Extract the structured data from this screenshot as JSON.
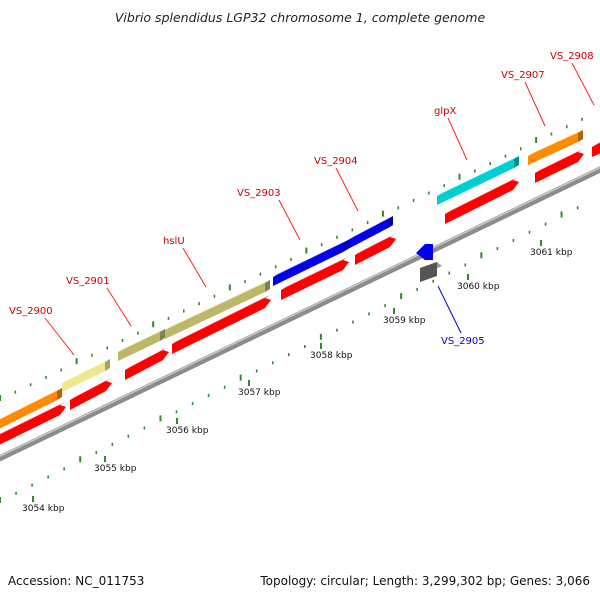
{
  "title": "Vibrio splendidus LGP32 chromosome 1, complete genome",
  "accession_text": "Accession: NC_011753",
  "summary_text": "Topology: circular; Length: 3,299,302 bp; Genes: 3,066",
  "colors": {
    "backbone": "#8c8c8c",
    "tick": "#2e8b2e",
    "label_red": "#cc0000",
    "label_blue": "#0000cc",
    "cds": "#ff0000",
    "leader": "#ff2020"
  },
  "axis": {
    "tick_labels": [
      "3054 kbp",
      "3055 kbp",
      "3056 kbp",
      "3057 kbp",
      "3058 kbp",
      "3059 kbp",
      "3060 kbp",
      "3061 kbp"
    ]
  },
  "genes": [
    {
      "name": "VS_2900",
      "label_color": "#cc0000",
      "box_color": "#f0e68c"
    },
    {
      "name": "VS_2901",
      "label_color": "#cc0000",
      "box_color": "#bdb76b"
    },
    {
      "name": "hslU",
      "label_color": "#cc0000",
      "box_color": "#bdb76b"
    },
    {
      "name": "VS_2903",
      "label_color": "#cc0000",
      "box_color": "#0000ee"
    },
    {
      "name": "VS_2904",
      "label_color": "#cc0000",
      "box_color": "#0000ee"
    },
    {
      "name": "VS_2905",
      "label_color": "#0000cc",
      "box_color": "#0000ee"
    },
    {
      "name": "glpX",
      "label_color": "#cc0000",
      "box_color": "#00ced1"
    },
    {
      "name": "VS_2907",
      "label_color": "#cc0000",
      "box_color": "#ff8c00"
    },
    {
      "name": "VS_2908",
      "label_color": "#cc0000",
      "box_color": "#ff8c00"
    }
  ]
}
